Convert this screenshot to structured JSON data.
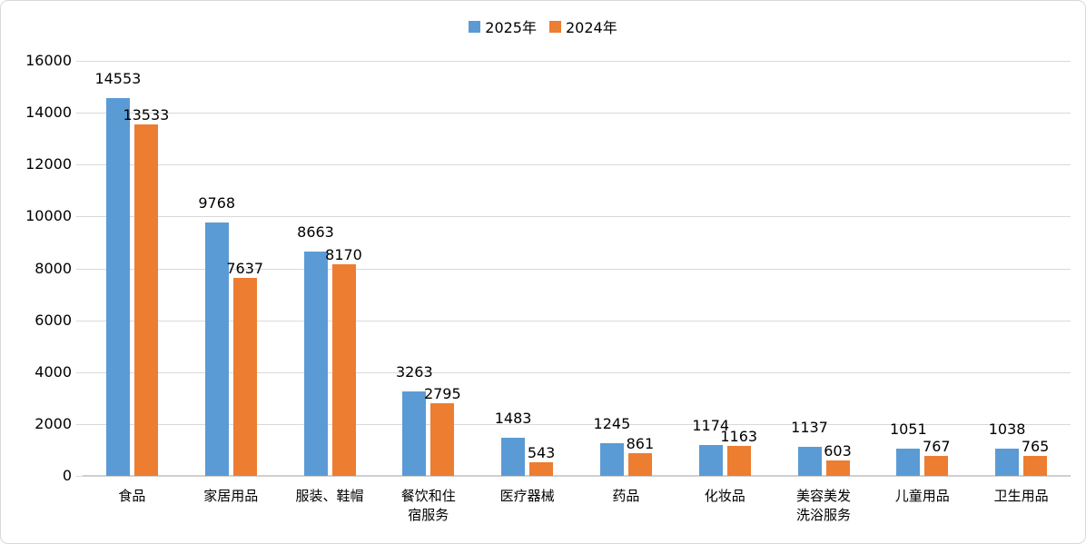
{
  "chart_data": {
    "type": "bar",
    "title": "",
    "xlabel": "",
    "ylabel": "",
    "categories": [
      "食品",
      "家居用品",
      "服装、鞋帽",
      "餐饮和住\n宿服务",
      "医疗器械",
      "药品",
      "化妆品",
      "美容美发\n洗浴服务",
      "儿童用品",
      "卫生用品"
    ],
    "series": [
      {
        "name": "2025年",
        "color": "#5B9BD5",
        "values": [
          14553,
          9768,
          8663,
          3263,
          1483,
          1245,
          1174,
          1137,
          1051,
          1038
        ]
      },
      {
        "name": "2024年",
        "color": "#ED7D31",
        "values": [
          13533,
          7637,
          8170,
          2795,
          543,
          861,
          1163,
          603,
          767,
          765
        ]
      }
    ],
    "ylim": [
      0,
      16000
    ],
    "yticks": [
      0,
      2000,
      4000,
      6000,
      8000,
      10000,
      12000,
      14000,
      16000
    ],
    "grid": true,
    "legend_position": "top",
    "value_labels": true
  },
  "style": {
    "series_blue": "#5B9BD5",
    "series_orange": "#ED7D31",
    "grid_color": "#D9D9D9",
    "axis_line_color": "#D0CECE",
    "text_color": "#000000",
    "border_color": "#D9D9D9",
    "background": "#FFFFFF"
  }
}
